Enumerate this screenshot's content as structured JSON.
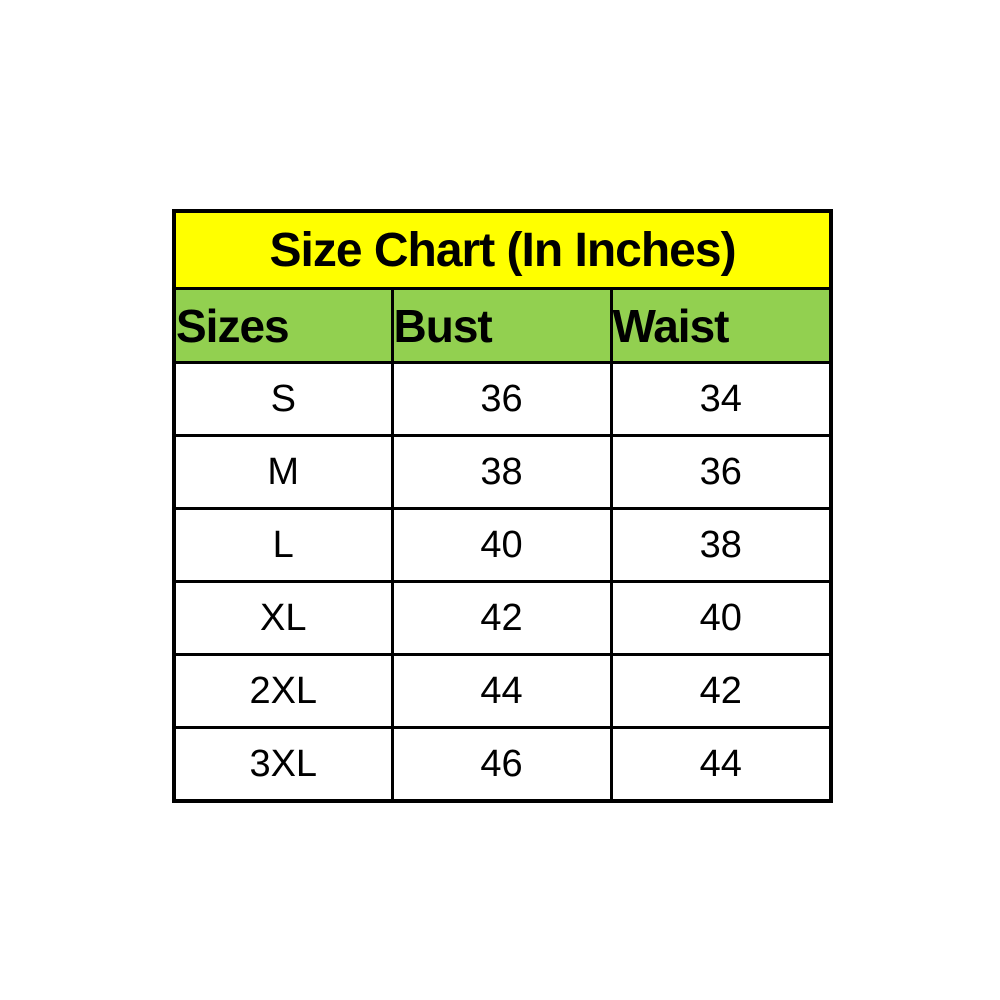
{
  "page": {
    "background": "#ffffff"
  },
  "colors": {
    "title_bg": "#ffff00",
    "header_bg": "#92d050",
    "border": "#000000",
    "text": "#000000"
  },
  "table": {
    "title": "Size Chart (In Inches)",
    "columns": [
      "Sizes",
      "Bust",
      "Waist"
    ],
    "rows": [
      {
        "size": "S",
        "bust": "36",
        "waist": "34"
      },
      {
        "size": "M",
        "bust": "38",
        "waist": "36"
      },
      {
        "size": "L",
        "bust": "40",
        "waist": "38"
      },
      {
        "size": "XL",
        "bust": "42",
        "waist": "40"
      },
      {
        "size": "2XL",
        "bust": "44",
        "waist": "42"
      },
      {
        "size": "3XL",
        "bust": "46",
        "waist": "44"
      }
    ]
  },
  "chart_data": {
    "type": "table",
    "title": "Size Chart (In Inches)",
    "columns": [
      "Sizes",
      "Bust",
      "Waist"
    ],
    "units": "inches",
    "rows": [
      [
        "S",
        36,
        34
      ],
      [
        "M",
        38,
        36
      ],
      [
        "L",
        40,
        38
      ],
      [
        "XL",
        42,
        40
      ],
      [
        "2XL",
        44,
        42
      ],
      [
        "3XL",
        46,
        44
      ]
    ]
  }
}
